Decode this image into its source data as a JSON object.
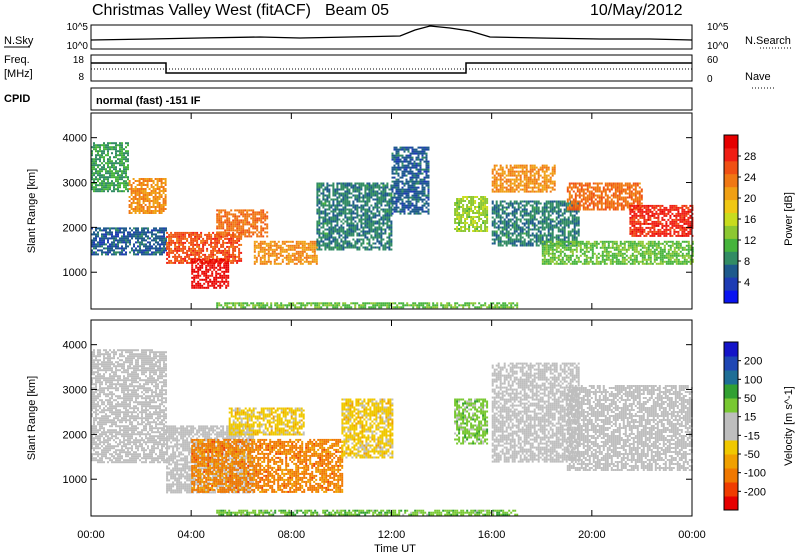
{
  "header": {
    "title": "Christmas Valley West (fitACF)",
    "beam": "Beam 05",
    "date": "10/May/2012",
    "left_labels": {
      "nsky": "N.Sky",
      "freq": "Freq.",
      "freq_unit": "[MHz]",
      "cpid": "CPID"
    },
    "right_labels": {
      "nsearch": "N.Search",
      "nave": "Nave"
    },
    "nsky_ticks": [
      "10^5",
      "10^0"
    ],
    "nsearch_ticks": [
      "10^5",
      "10^0"
    ],
    "freq_ticks": [
      "18",
      "8"
    ],
    "nave_ticks": [
      "60",
      "0"
    ],
    "cpid_text": "normal (fast) -151 IF"
  },
  "chart_data": [
    {
      "type": "heatmap",
      "name": "power-panel",
      "ylabel": "Slant Range [km]",
      "xlabel": "Time UT",
      "x_ticks": [
        "00:00",
        "04:00",
        "08:00",
        "12:00",
        "16:00",
        "20:00",
        "00:00"
      ],
      "xlim": [
        0,
        24
      ],
      "y_ticks": [
        1000,
        2000,
        3000,
        4000
      ],
      "ylim": [
        180,
        4550
      ],
      "colorbar": {
        "label": "Power [dB]",
        "ticks": [
          4,
          8,
          12,
          16,
          20,
          24,
          28
        ],
        "range": [
          0,
          32
        ],
        "colors": [
          "#0a14f0",
          "#1e3cb4",
          "#1e5a8c",
          "#328c64",
          "#46b43c",
          "#8cc832",
          "#c8dc1e",
          "#f0c814",
          "#f0a014",
          "#f07814",
          "#f05014",
          "#f01e14",
          "#e60000"
        ]
      },
      "regions": [
        {
          "t0": 0.0,
          "t1": 1.5,
          "r0": 2800,
          "r1": 3900,
          "value": 10
        },
        {
          "t0": 1.5,
          "t1": 3.0,
          "r0": 2300,
          "r1": 3100,
          "value": 22
        },
        {
          "t0": 0.0,
          "t1": 3.0,
          "r0": 1400,
          "r1": 2000,
          "value": 6
        },
        {
          "t0": 3.0,
          "t1": 6.0,
          "r0": 1200,
          "r1": 1900,
          "value": 26
        },
        {
          "t0": 4.0,
          "t1": 5.5,
          "r0": 650,
          "r1": 1300,
          "value": 30
        },
        {
          "t0": 5.0,
          "t1": 7.0,
          "r0": 1800,
          "r1": 2400,
          "value": 24
        },
        {
          "t0": 6.5,
          "t1": 9.0,
          "r0": 1200,
          "r1": 1700,
          "value": 22
        },
        {
          "t0": 9.0,
          "t1": 12.0,
          "r0": 1500,
          "r1": 3000,
          "value": 8
        },
        {
          "t0": 12.0,
          "t1": 13.5,
          "r0": 2300,
          "r1": 3800,
          "value": 6
        },
        {
          "t0": 14.5,
          "t1": 15.8,
          "r0": 1900,
          "r1": 2700,
          "value": 14
        },
        {
          "t0": 16.0,
          "t1": 18.5,
          "r0": 2800,
          "r1": 3400,
          "value": 22
        },
        {
          "t0": 16.0,
          "t1": 19.5,
          "r0": 1600,
          "r1": 2600,
          "value": 8
        },
        {
          "t0": 19.0,
          "t1": 22.0,
          "r0": 2400,
          "r1": 3000,
          "value": 24
        },
        {
          "t0": 21.5,
          "t1": 24.0,
          "r0": 1800,
          "r1": 2500,
          "value": 28
        },
        {
          "t0": 18.0,
          "t1": 24.0,
          "r0": 1200,
          "r1": 1700,
          "value": 12
        },
        {
          "t0": 5.0,
          "t1": 17.0,
          "r0": 200,
          "r1": 330,
          "value": 12
        }
      ]
    },
    {
      "type": "heatmap",
      "name": "velocity-panel",
      "ylabel": "Slant Range [km]",
      "xlabel": "Time UT",
      "x_ticks": [
        "00:00",
        "04:00",
        "08:00",
        "12:00",
        "16:00",
        "20:00",
        "00:00"
      ],
      "xlim": [
        0,
        24
      ],
      "y_ticks": [
        1000,
        2000,
        3000,
        4000
      ],
      "ylim": [
        180,
        4550
      ],
      "colorbar": {
        "label": "Velocity [m s^-1]",
        "ticks": [
          "200",
          "100",
          "50",
          "15",
          "-15",
          "-50",
          "-100",
          "-200"
        ],
        "range": [
          -250,
          250
        ],
        "colors": [
          "#e60000",
          "#f03c00",
          "#f07800",
          "#f0a000",
          "#f0c800",
          "#bebebe",
          "#bebebe",
          "#78c832",
          "#32a032",
          "#1e6e96",
          "#1e46b4",
          "#1414c8"
        ]
      },
      "regions": [
        {
          "t0": 0.0,
          "t1": 3.0,
          "r0": 1400,
          "r1": 3900,
          "value": 0
        },
        {
          "t0": 3.0,
          "t1": 6.5,
          "r0": 700,
          "r1": 2200,
          "value": 0
        },
        {
          "t0": 5.5,
          "t1": 8.5,
          "r0": 2000,
          "r1": 2600,
          "value": -60
        },
        {
          "t0": 4.0,
          "t1": 10.0,
          "r0": 700,
          "r1": 1900,
          "value": -140
        },
        {
          "t0": 10.0,
          "t1": 12.0,
          "r0": 1500,
          "r1": 2800,
          "value": -60
        },
        {
          "t0": 14.5,
          "t1": 15.8,
          "r0": 1800,
          "r1": 2800,
          "value": 60
        },
        {
          "t0": 16.0,
          "t1": 19.5,
          "r0": 1400,
          "r1": 3600,
          "value": 0
        },
        {
          "t0": 19.0,
          "t1": 24.0,
          "r0": 1200,
          "r1": 3100,
          "value": 0
        },
        {
          "t0": 5.0,
          "t1": 17.0,
          "r0": 200,
          "r1": 320,
          "value": 70
        }
      ]
    }
  ]
}
